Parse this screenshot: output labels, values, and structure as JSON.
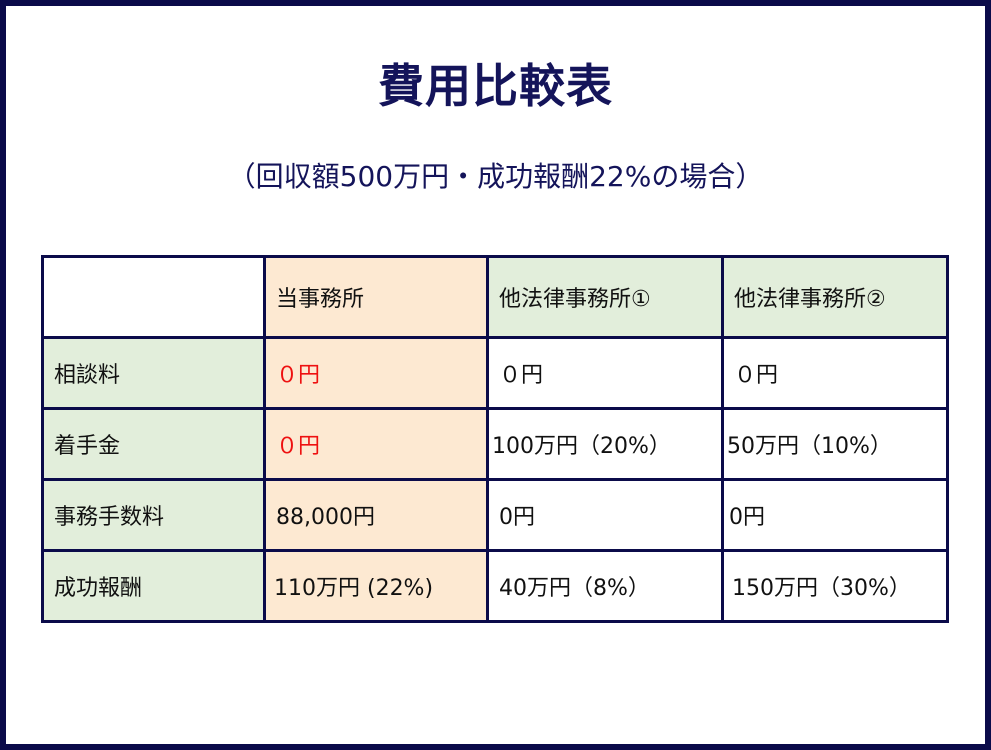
{
  "title": "費用比較表",
  "subtitle": "（回収額500万円・成功報酬22%の場合）",
  "colors": {
    "frame": "#0b0b4a",
    "label_bg": "#e2eedb",
    "ours_bg": "#fde9d2",
    "highlight": "#ee1111"
  },
  "table": {
    "headers": [
      "",
      "当事務所",
      "他法律事務所①",
      "他法律事務所②"
    ],
    "rows": [
      {
        "label": "相談料",
        "ours": "０円",
        "firm1": "０円",
        "firm2": "０円"
      },
      {
        "label": "着手金",
        "ours": "０円",
        "firm1": "100万円（20%）",
        "firm2": "50万円（10%）"
      },
      {
        "label": "事務手数料",
        "ours": "88,000円",
        "firm1": "0円",
        "firm2": "0円"
      },
      {
        "label": "成功報酬",
        "ours": "110万円 (22%)",
        "firm1": "40万円（8%）",
        "firm2": "150万円（30%）"
      }
    ]
  }
}
